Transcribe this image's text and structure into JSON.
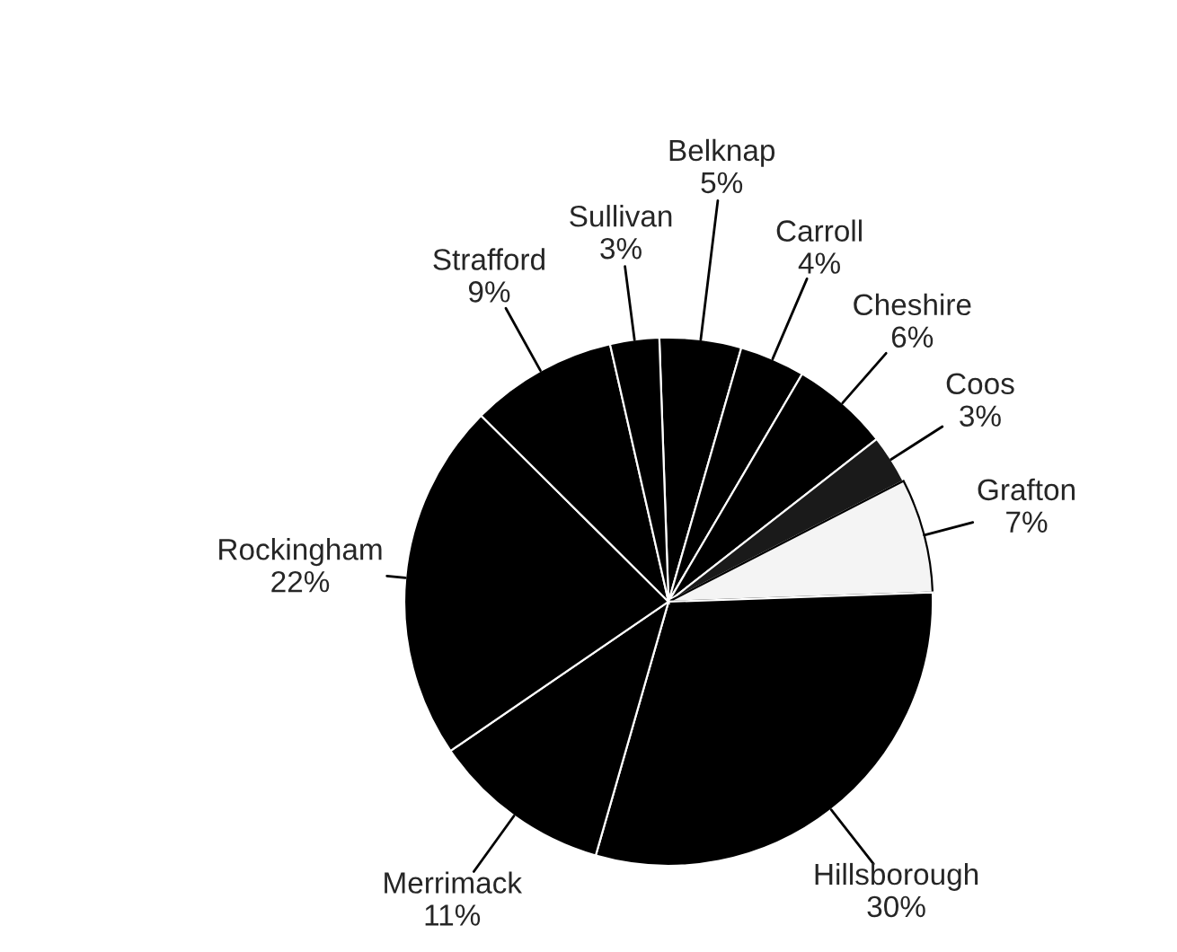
{
  "chart_data": {
    "type": "pie",
    "categories": [
      "Belknap",
      "Carroll",
      "Cheshire",
      "Coos",
      "Grafton",
      "Hillsborough",
      "Merrimack",
      "Rockingham",
      "Strafford",
      "Sullivan"
    ],
    "values": [
      5,
      4,
      6,
      3,
      7,
      30,
      11,
      22,
      9,
      3
    ],
    "value_labels": [
      "5%",
      "4%",
      "6%",
      "3%",
      "7%",
      "30%",
      "11%",
      "22%",
      "9%",
      "3%"
    ],
    "colors": [
      "#000000",
      "#000000",
      "#000000",
      "#1a1a1a",
      "#f4f4f4",
      "#000000",
      "#000000",
      "#000000",
      "#000000",
      "#000000"
    ]
  }
}
